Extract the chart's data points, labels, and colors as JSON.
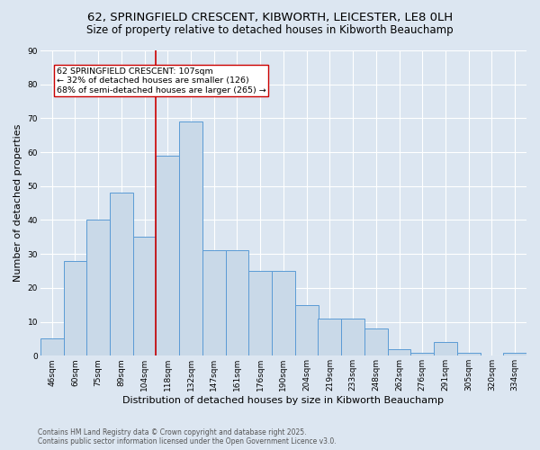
{
  "title_line1": "62, SPRINGFIELD CRESCENT, KIBWORTH, LEICESTER, LE8 0LH",
  "title_line2": "Size of property relative to detached houses in Kibworth Beauchamp",
  "xlabel": "Distribution of detached houses by size in Kibworth Beauchamp",
  "ylabel": "Number of detached properties",
  "categories": [
    "46sqm",
    "60sqm",
    "75sqm",
    "89sqm",
    "104sqm",
    "118sqm",
    "132sqm",
    "147sqm",
    "161sqm",
    "176sqm",
    "190sqm",
    "204sqm",
    "219sqm",
    "233sqm",
    "248sqm",
    "262sqm",
    "276sqm",
    "291sqm",
    "305sqm",
    "320sqm",
    "334sqm"
  ],
  "values": [
    5,
    28,
    40,
    48,
    35,
    59,
    69,
    31,
    31,
    25,
    25,
    15,
    11,
    11,
    8,
    2,
    1,
    4,
    1,
    0,
    1
  ],
  "bar_color": "#c9d9e8",
  "bar_edge_color": "#5b9bd5",
  "vline_x": 4.5,
  "vline_color": "#cc0000",
  "annotation_text": "62 SPRINGFIELD CRESCENT: 107sqm\n← 32% of detached houses are smaller (126)\n68% of semi-detached houses are larger (265) →",
  "annotation_box_color": "#ffffff",
  "annotation_box_edge": "#cc0000",
  "ylim": [
    0,
    90
  ],
  "yticks": [
    0,
    10,
    20,
    30,
    40,
    50,
    60,
    70,
    80,
    90
  ],
  "bg_color": "#dce6f1",
  "plot_bg_color": "#dce6f1",
  "footer": "Contains HM Land Registry data © Crown copyright and database right 2025.\nContains public sector information licensed under the Open Government Licence v3.0.",
  "title_fontsize": 9.5,
  "subtitle_fontsize": 8.5,
  "axis_label_fontsize": 8,
  "tick_fontsize": 6.5,
  "footer_fontsize": 5.5,
  "annotation_fontsize": 6.8
}
